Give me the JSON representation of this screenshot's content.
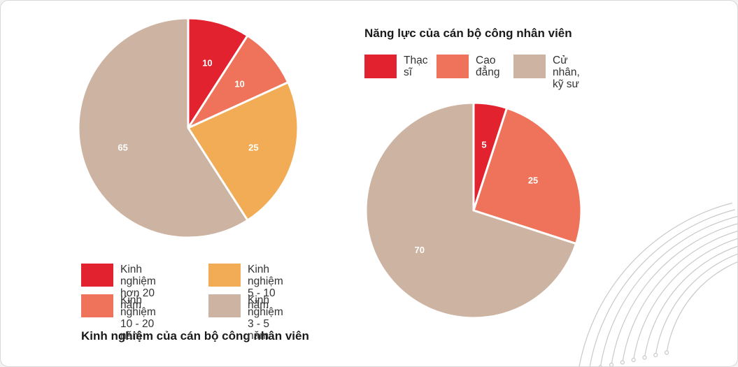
{
  "chart_data": [
    {
      "type": "pie",
      "title": "Kinh nghiệm của cán bộ công nhân viên",
      "slices": [
        {
          "label": "Kinh nghiệm\nhơn 20 năm",
          "value": 10,
          "color": "#e2232f"
        },
        {
          "label": "Kinh nghiệm\n10 - 20 năm",
          "value": 10,
          "color": "#ef735a"
        },
        {
          "label": "Kinh nghiệm\n5 - 10 năm",
          "value": 25,
          "color": "#f2ac55"
        },
        {
          "label": "Kinh nghiệm\n3 - 5 năm",
          "value": 65,
          "color": "#cdb3a1"
        }
      ],
      "legend_placement": "bottom"
    },
    {
      "type": "pie",
      "title": "Năng lực của cán bộ công nhân viên",
      "slices": [
        {
          "label": "Thạc\nsĩ",
          "value": 5,
          "color": "#e2232f"
        },
        {
          "label": "Cao\nđẳng",
          "value": 25,
          "color": "#ef735a"
        },
        {
          "label": "Cử nhân,\nkỹ sư",
          "value": 70,
          "color": "#cdb3a1"
        }
      ],
      "legend_placement": "top"
    }
  ]
}
